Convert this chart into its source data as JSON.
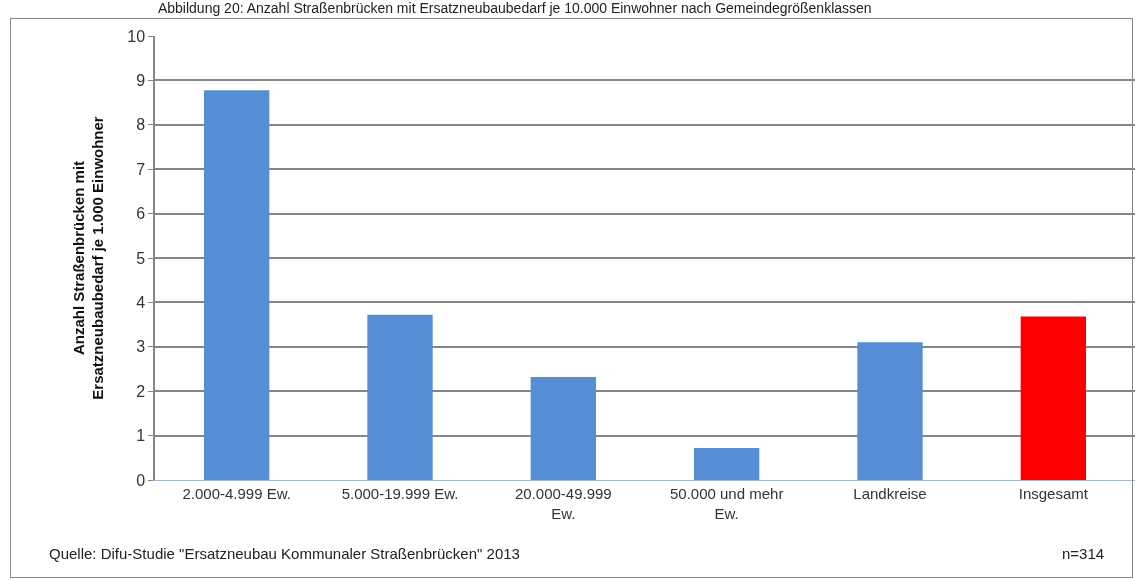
{
  "chart_data": {
    "type": "bar",
    "title": "Abbildung 20: Anzahl Straßenbrücken mit Ersatzneubaubedarf je 10.000 Einwohner nach Gemeindegrößenklassen",
    "ylabel": "Anzahl Straßenbrücken mit Ersatzneubaubedarf je 1.000 Einwohner",
    "categories": [
      "2.000-4.999 Ew.",
      "5.000-19.999 Ew.",
      "20.000-49.999 Ew.",
      "50.000 und mehr Ew.",
      "Landkreise",
      "Insgesamt"
    ],
    "values": [
      8.78,
      3.72,
      2.32,
      0.72,
      3.1,
      3.68
    ],
    "colors": [
      "#558ed5",
      "#558ed5",
      "#558ed5",
      "#558ed5",
      "#558ed5",
      "#ff0000"
    ],
    "ylim": [
      0,
      10
    ],
    "yticks": [
      0,
      1,
      2,
      3,
      4,
      5,
      6,
      7,
      8,
      9,
      10
    ],
    "grid": "y",
    "annotations": [
      "Quelle: Difu-Studie \"Ersatzneubau Kommunaler Straßenbrücken\" 2013",
      "n=314"
    ]
  }
}
